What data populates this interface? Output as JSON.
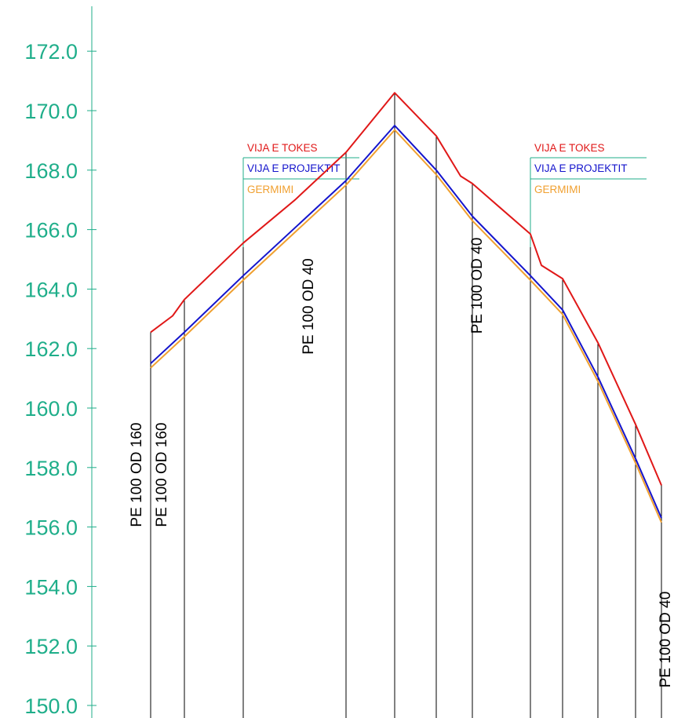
{
  "chart_data": {
    "type": "line",
    "title": "",
    "xlabel": "",
    "ylabel": "",
    "ylim": [
      150,
      172
    ],
    "yticks": [
      "150.0",
      "152.0",
      "154.0",
      "156.0",
      "158.0",
      "160.0",
      "162.0",
      "164.0",
      "166.0",
      "168.0",
      "170.0",
      "172.0"
    ],
    "grid": false,
    "x": [
      0,
      43,
      118,
      249,
      311,
      364,
      410,
      484,
      525,
      570,
      618,
      651
    ],
    "series": [
      {
        "key": "tokes",
        "color": "#e01818",
        "values": [
          162.55,
          163.65,
          165.55,
          168.6,
          170.6,
          169.15,
          167.55,
          165.85,
          164.35,
          162.2,
          159.45,
          157.4
        ]
      },
      {
        "key": "projektit",
        "color": "#1414cc",
        "values": [
          161.5,
          162.55,
          164.45,
          167.65,
          169.5,
          168.0,
          166.45,
          164.45,
          163.3,
          161.05,
          158.3,
          156.3
        ]
      },
      {
        "key": "germimi",
        "color": "#f0a030",
        "values": [
          161.35,
          162.4,
          164.3,
          167.5,
          169.35,
          167.85,
          166.3,
          164.3,
          163.15,
          160.9,
          158.15,
          156.15
        ]
      }
    ],
    "extra_points": {
      "tokes": [
        {
          "x": 28,
          "y": 163.1
        },
        {
          "x": 184,
          "y": 167.0
        },
        {
          "x": 395,
          "y": 167.8
        },
        {
          "x": 498,
          "y": 164.8
        }
      ]
    },
    "station_lines": [
      0,
      43,
      118,
      249,
      311,
      364,
      410,
      484,
      525,
      570,
      618,
      651
    ],
    "legends": [
      {
        "x_start": 118,
        "x_end": 266,
        "labels": {
          "tokes": "VIJA E TOKES",
          "projektit": "VIJA E PROJEKTIT",
          "germimi": "GERMIMI"
        }
      },
      {
        "x_start": 484,
        "x_end": 632,
        "labels": {
          "tokes": "VIJA E TOKES",
          "projektit": "VIJA E PROJEKTIT",
          "germimi": "GERMIMI"
        }
      }
    ],
    "annotations": [
      {
        "text": "PE 100 OD 160",
        "x": -12,
        "y": 156.0
      },
      {
        "text": "PE 100 OD 160",
        "x": 20,
        "y": 156.0
      },
      {
        "text": "PE 100 OD 40",
        "x": 207,
        "y": 161.8
      },
      {
        "text": "PE 100 OD 40",
        "x": 422,
        "y": 162.5
      },
      {
        "text": "PE 100 OD 40",
        "x": 662,
        "y": 150.6
      }
    ]
  }
}
